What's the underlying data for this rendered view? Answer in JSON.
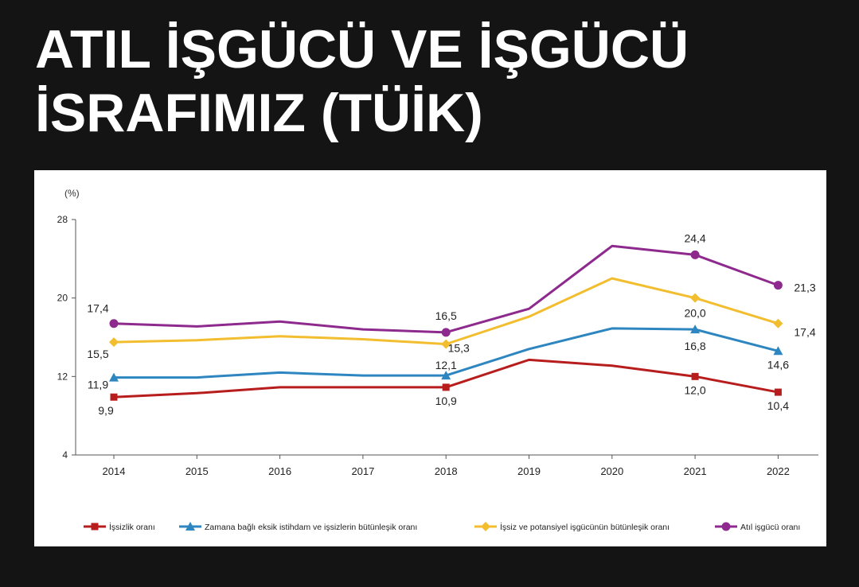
{
  "headline": {
    "line1": "ATIL İŞGÜCÜ VE İŞGÜCÜ",
    "line2": "İSRAFIMIZ (TÜİK)"
  },
  "chart_data": {
    "type": "line",
    "unit_label": "(%)",
    "x": [
      "2014",
      "2015",
      "2016",
      "2017",
      "2018",
      "2019",
      "2020",
      "2021",
      "2022"
    ],
    "ylim": [
      4,
      28
    ],
    "yticks": [
      4,
      12,
      20,
      28
    ],
    "grid": false,
    "legend_position": "bottom",
    "series": [
      {
        "name": "İşsizlik oranı",
        "color": "#b81d1d",
        "marker": "square",
        "values": [
          9.9,
          10.3,
          10.9,
          10.9,
          10.9,
          13.7,
          13.1,
          12.0,
          10.4
        ],
        "labels": [
          "9,9",
          null,
          null,
          null,
          "10,9",
          null,
          null,
          "12,0",
          "10,4"
        ]
      },
      {
        "name": "Zamana bağlı eksik istihdam ve işsizlerin bütünleşik oranı",
        "color": "#2e86c1",
        "marker": "triangle",
        "values": [
          11.9,
          11.9,
          12.4,
          12.1,
          12.1,
          14.8,
          16.9,
          16.8,
          14.6
        ],
        "labels": [
          "11,9",
          null,
          null,
          null,
          "12,1",
          null,
          null,
          "16,8",
          "14,6"
        ]
      },
      {
        "name": "İşsiz ve potansiyel işgücünün bütünleşik oranı",
        "color": "#f2be2f",
        "marker": "diamond",
        "values": [
          15.5,
          15.7,
          16.1,
          15.8,
          15.3,
          18.1,
          22.0,
          20.0,
          17.4
        ],
        "labels": [
          "15,5",
          null,
          null,
          null,
          "15,3",
          null,
          null,
          "20,0",
          "17,4"
        ]
      },
      {
        "name": "Atıl işgücü oranı",
        "color": "#8e2a8e",
        "marker": "circle",
        "values": [
          17.4,
          17.1,
          17.6,
          16.8,
          16.5,
          18.9,
          25.3,
          24.4,
          21.3
        ],
        "labels": [
          "17,4",
          null,
          null,
          null,
          "16,5",
          null,
          null,
          "24,4",
          "21,3"
        ]
      }
    ],
    "marked_points": [
      0,
      4,
      7,
      8
    ]
  }
}
